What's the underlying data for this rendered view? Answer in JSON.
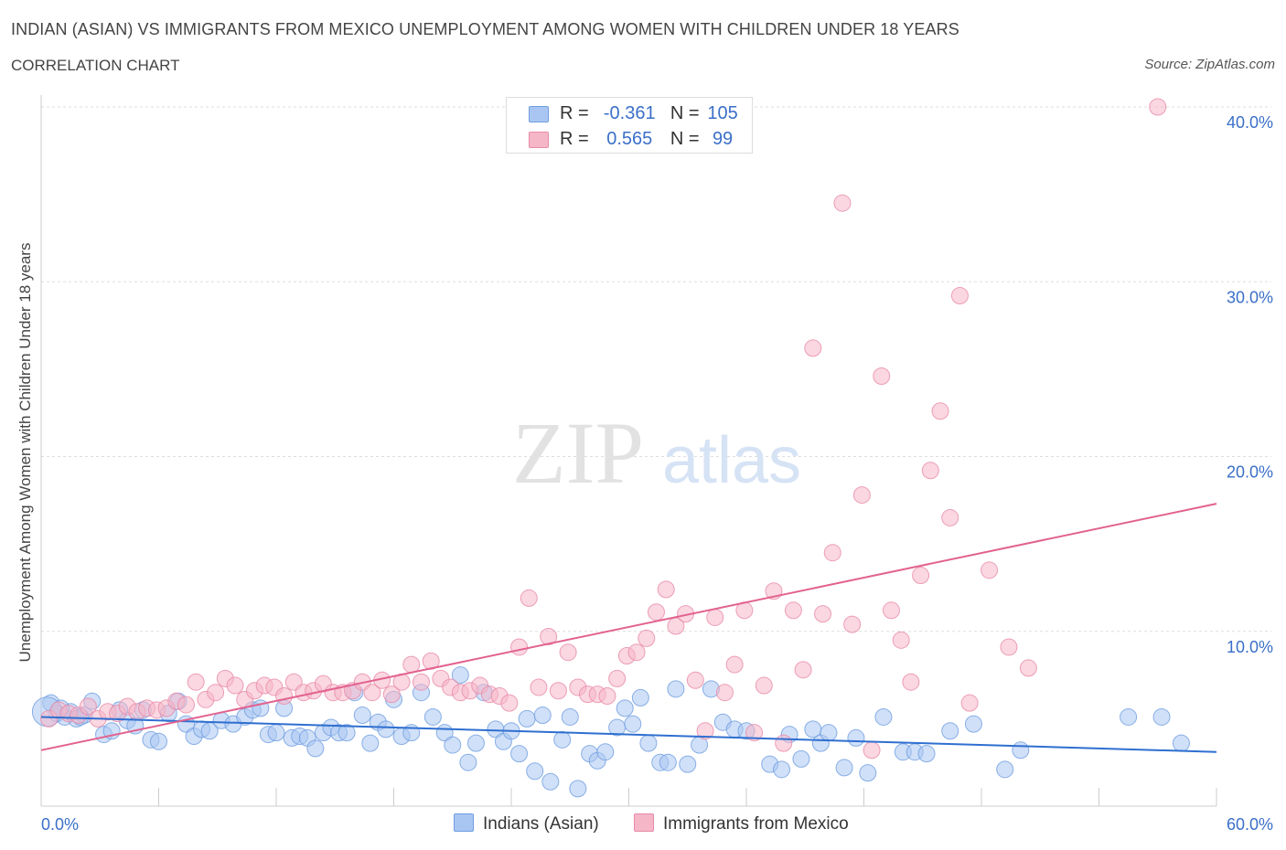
{
  "header": {
    "title": "INDIAN (ASIAN) VS IMMIGRANTS FROM MEXICO UNEMPLOYMENT AMONG WOMEN WITH CHILDREN UNDER 18 YEARS",
    "subtitle": "CORRELATION CHART",
    "source_prefix": "Source: ",
    "source_name": "ZipAtlas.com"
  },
  "watermark": {
    "zip": "ZIP",
    "atlas": "atlas"
  },
  "legend": {
    "r_label": "R =",
    "n_label": "N =",
    "rows": [
      {
        "r": "-0.361",
        "n": "105",
        "color": "#a9c6f2"
      },
      {
        "r": "0.565",
        "n": "99",
        "color": "#f5b6c8"
      }
    ]
  },
  "bottom_legend": [
    "Indians (Asian)",
    "Immigrants from Mexico"
  ],
  "colors": {
    "blue_fill": "#a9c6f2",
    "blue_stroke": "#6f9ee0",
    "blue_line": "#2f6fd0",
    "pink_fill": "#f5b6c8",
    "pink_stroke": "#e88aa8",
    "pink_line": "#e2628f",
    "axis_label": "#3a6fc8",
    "grid": "#dddddd"
  },
  "chart_data": {
    "type": "scatter",
    "title": "INDIAN (ASIAN) VS IMMIGRANTS FROM MEXICO UNEMPLOYMENT AMONG WOMEN WITH CHILDREN UNDER 18 YEARS",
    "xlabel": "",
    "ylabel": "Unemployment Among Women with Children Under 18 years",
    "xlim": [
      0,
      60
    ],
    "ylim": [
      0,
      40
    ],
    "x_tick_labels": [
      "0.0%",
      "60.0%"
    ],
    "y_tick_labels": [
      "10.0%",
      "20.0%",
      "30.0%",
      "40.0%"
    ],
    "y_ticks": [
      10,
      20,
      30,
      40
    ],
    "grid": true,
    "legend_position": "top-center",
    "series": [
      {
        "name": "Indians (Asian)",
        "R": -0.361,
        "N": 105,
        "trend": {
          "x": [
            0,
            60
          ],
          "y": [
            5.1,
            3.1
          ]
        },
        "points": [
          [
            0.5,
            5.9
          ],
          [
            0.8,
            5.3
          ],
          [
            1.2,
            5.1
          ],
          [
            1.5,
            5.4
          ],
          [
            1.8,
            5.0
          ],
          [
            2.2,
            5.2
          ],
          [
            2.6,
            6.0
          ],
          [
            3.2,
            4.1
          ],
          [
            3.6,
            4.3
          ],
          [
            4.0,
            5.5
          ],
          [
            4.4,
            4.9
          ],
          [
            4.8,
            4.6
          ],
          [
            5.2,
            5.5
          ],
          [
            5.6,
            3.8
          ],
          [
            6.0,
            3.7
          ],
          [
            6.5,
            5.3
          ],
          [
            7.0,
            6.0
          ],
          [
            7.4,
            4.7
          ],
          [
            7.8,
            4.0
          ],
          [
            8.2,
            4.4
          ],
          [
            8.6,
            4.3
          ],
          [
            9.2,
            4.9
          ],
          [
            9.8,
            4.7
          ],
          [
            10.4,
            5.1
          ],
          [
            10.8,
            5.5
          ],
          [
            11.2,
            5.6
          ],
          [
            11.6,
            4.1
          ],
          [
            12.0,
            4.2
          ],
          [
            12.4,
            5.6
          ],
          [
            12.8,
            3.9
          ],
          [
            13.2,
            4.0
          ],
          [
            13.6,
            3.9
          ],
          [
            14.0,
            3.3
          ],
          [
            14.4,
            4.2
          ],
          [
            14.8,
            4.5
          ],
          [
            15.2,
            4.2
          ],
          [
            15.6,
            4.2
          ],
          [
            16.0,
            6.5
          ],
          [
            16.4,
            5.2
          ],
          [
            16.8,
            3.6
          ],
          [
            17.2,
            4.8
          ],
          [
            17.6,
            4.4
          ],
          [
            18.0,
            6.1
          ],
          [
            18.4,
            4.0
          ],
          [
            18.9,
            4.2
          ],
          [
            19.4,
            6.5
          ],
          [
            20.0,
            5.1
          ],
          [
            20.6,
            4.2
          ],
          [
            21.0,
            3.5
          ],
          [
            21.4,
            7.5
          ],
          [
            21.8,
            2.5
          ],
          [
            22.2,
            3.6
          ],
          [
            22.6,
            6.5
          ],
          [
            23.2,
            4.4
          ],
          [
            23.6,
            3.7
          ],
          [
            24.0,
            4.3
          ],
          [
            24.4,
            3.0
          ],
          [
            24.8,
            5.0
          ],
          [
            25.2,
            2.0
          ],
          [
            25.6,
            5.2
          ],
          [
            26.0,
            1.4
          ],
          [
            26.6,
            3.8
          ],
          [
            27.0,
            5.1
          ],
          [
            27.4,
            1.0
          ],
          [
            28.0,
            3.0
          ],
          [
            28.4,
            2.6
          ],
          [
            28.8,
            3.1
          ],
          [
            29.4,
            4.5
          ],
          [
            29.8,
            5.6
          ],
          [
            30.2,
            4.7
          ],
          [
            30.6,
            6.2
          ],
          [
            31.0,
            3.6
          ],
          [
            31.6,
            2.5
          ],
          [
            32.0,
            2.5
          ],
          [
            32.4,
            6.7
          ],
          [
            33.0,
            2.4
          ],
          [
            33.6,
            3.5
          ],
          [
            34.2,
            6.7
          ],
          [
            34.8,
            4.8
          ],
          [
            35.4,
            4.4
          ],
          [
            36.0,
            4.3
          ],
          [
            37.2,
            2.4
          ],
          [
            37.8,
            2.1
          ],
          [
            38.2,
            4.1
          ],
          [
            38.8,
            2.7
          ],
          [
            39.4,
            4.4
          ],
          [
            39.8,
            3.6
          ],
          [
            40.2,
            4.2
          ],
          [
            41.0,
            2.2
          ],
          [
            41.6,
            3.9
          ],
          [
            42.2,
            1.9
          ],
          [
            43.0,
            5.1
          ],
          [
            44.0,
            3.1
          ],
          [
            44.6,
            3.1
          ],
          [
            45.2,
            3.0
          ],
          [
            46.4,
            4.3
          ],
          [
            47.6,
            4.7
          ],
          [
            49.2,
            2.1
          ],
          [
            50.0,
            3.2
          ],
          [
            55.5,
            5.1
          ],
          [
            57.2,
            5.1
          ],
          [
            58.2,
            3.6
          ],
          [
            1.0,
            5.6
          ],
          [
            2.0,
            5.1
          ],
          [
            0.3,
            5.4
          ]
        ]
      },
      {
        "name": "Immigrants from Mexico",
        "R": 0.565,
        "N": 99,
        "trend": {
          "x": [
            0,
            60
          ],
          "y": [
            3.2,
            17.3
          ]
        },
        "points": [
          [
            0.4,
            5.0
          ],
          [
            0.9,
            5.5
          ],
          [
            1.4,
            5.3
          ],
          [
            1.9,
            5.2
          ],
          [
            2.4,
            5.7
          ],
          [
            2.9,
            5.0
          ],
          [
            3.4,
            5.4
          ],
          [
            3.9,
            5.3
          ],
          [
            4.4,
            5.7
          ],
          [
            4.9,
            5.4
          ],
          [
            5.4,
            5.6
          ],
          [
            5.9,
            5.5
          ],
          [
            6.4,
            5.6
          ],
          [
            6.9,
            6.0
          ],
          [
            7.4,
            5.8
          ],
          [
            7.9,
            7.1
          ],
          [
            8.4,
            6.1
          ],
          [
            8.9,
            6.5
          ],
          [
            9.4,
            7.3
          ],
          [
            9.9,
            6.9
          ],
          [
            10.4,
            6.1
          ],
          [
            10.9,
            6.6
          ],
          [
            11.4,
            6.9
          ],
          [
            11.9,
            6.8
          ],
          [
            12.4,
            6.3
          ],
          [
            12.9,
            7.1
          ],
          [
            13.4,
            6.5
          ],
          [
            13.9,
            6.6
          ],
          [
            14.4,
            7.0
          ],
          [
            14.9,
            6.5
          ],
          [
            15.4,
            6.5
          ],
          [
            15.9,
            6.6
          ],
          [
            16.4,
            7.1
          ],
          [
            16.9,
            6.5
          ],
          [
            17.4,
            7.2
          ],
          [
            17.9,
            6.4
          ],
          [
            18.4,
            7.1
          ],
          [
            18.9,
            8.1
          ],
          [
            19.4,
            7.1
          ],
          [
            19.9,
            8.3
          ],
          [
            20.4,
            7.3
          ],
          [
            20.9,
            6.8
          ],
          [
            21.4,
            6.5
          ],
          [
            21.9,
            6.6
          ],
          [
            22.4,
            6.9
          ],
          [
            22.9,
            6.4
          ],
          [
            23.4,
            6.3
          ],
          [
            23.9,
            5.9
          ],
          [
            24.4,
            9.1
          ],
          [
            24.9,
            11.9
          ],
          [
            25.4,
            6.8
          ],
          [
            25.9,
            9.7
          ],
          [
            26.4,
            6.6
          ],
          [
            26.9,
            8.8
          ],
          [
            27.4,
            6.8
          ],
          [
            27.9,
            6.4
          ],
          [
            28.4,
            6.4
          ],
          [
            28.9,
            6.3
          ],
          [
            29.4,
            7.3
          ],
          [
            29.9,
            8.6
          ],
          [
            30.4,
            8.8
          ],
          [
            30.9,
            9.6
          ],
          [
            31.4,
            11.1
          ],
          [
            31.9,
            12.4
          ],
          [
            32.4,
            10.3
          ],
          [
            32.9,
            11.0
          ],
          [
            33.4,
            7.2
          ],
          [
            33.9,
            4.3
          ],
          [
            34.4,
            10.8
          ],
          [
            34.9,
            6.5
          ],
          [
            35.4,
            8.1
          ],
          [
            35.9,
            11.2
          ],
          [
            36.4,
            4.2
          ],
          [
            36.9,
            6.9
          ],
          [
            37.4,
            12.3
          ],
          [
            37.9,
            3.6
          ],
          [
            38.4,
            11.2
          ],
          [
            38.9,
            7.8
          ],
          [
            39.4,
            26.2
          ],
          [
            39.9,
            11.0
          ],
          [
            40.4,
            14.5
          ],
          [
            40.9,
            34.5
          ],
          [
            41.4,
            10.4
          ],
          [
            41.9,
            17.8
          ],
          [
            42.4,
            3.2
          ],
          [
            42.9,
            24.6
          ],
          [
            43.4,
            11.2
          ],
          [
            43.9,
            9.5
          ],
          [
            44.4,
            7.1
          ],
          [
            44.9,
            13.2
          ],
          [
            45.4,
            19.2
          ],
          [
            45.9,
            22.6
          ],
          [
            46.4,
            16.5
          ],
          [
            46.9,
            29.2
          ],
          [
            47.4,
            5.9
          ],
          [
            48.4,
            13.5
          ],
          [
            49.4,
            9.1
          ],
          [
            50.4,
            7.9
          ],
          [
            57.0,
            40.0
          ]
        ]
      }
    ]
  }
}
